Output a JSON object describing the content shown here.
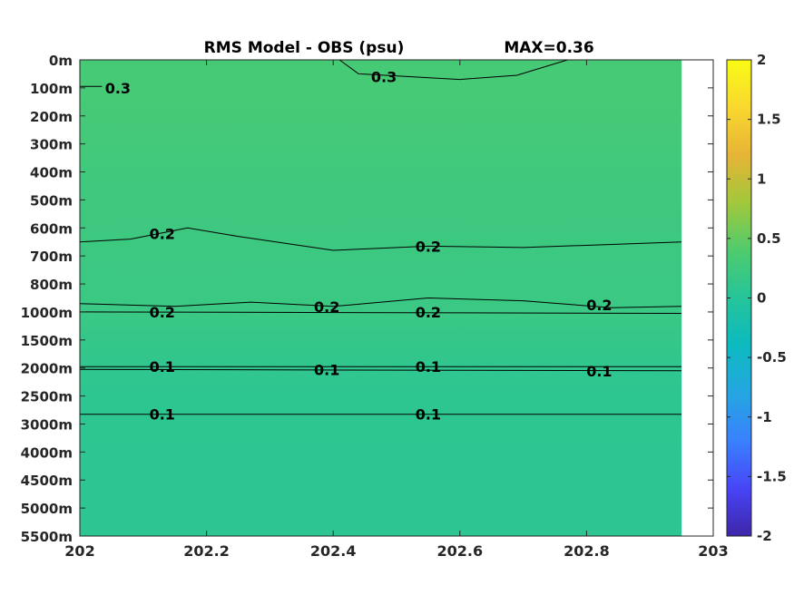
{
  "chart_data": {
    "type": "heatmap",
    "title": "RMS Model - OBS (psu)",
    "max_label": "MAX=0.36",
    "x_ticks": [
      "202",
      "202.2",
      "202.4",
      "202.6",
      "202.8",
      "203"
    ],
    "xlim": [
      202,
      203
    ],
    "data_x_end": 202.95,
    "depth_levels": [
      "0m",
      "100m",
      "200m",
      "300m",
      "400m",
      "500m",
      "600m",
      "700m",
      "800m",
      "1000m",
      "1500m",
      "2000m",
      "2500m",
      "3000m",
      "4000m",
      "4500m",
      "5000m",
      "5500m"
    ],
    "depth_rms": [
      0.32,
      0.32,
      0.31,
      0.29,
      0.26,
      0.25,
      0.24,
      0.22,
      0.21,
      0.2,
      0.15,
      0.1,
      0.09,
      0.09,
      0.08,
      0.08,
      0.08,
      0.08
    ],
    "colorbar": {
      "clim": [
        -2,
        2
      ],
      "ticks": [
        "2",
        "1.5",
        "1",
        "0.5",
        "0",
        "-0.5",
        "-1",
        "-1.5",
        "-2"
      ],
      "colormap": "parula",
      "stops": [
        "#3e26a8",
        "#4745f7",
        "#3981fd",
        "#25a6e1",
        "#0cbac0",
        "#25c49a",
        "#4fcb6d",
        "#a2c83b",
        "#e7b436",
        "#f9d82f",
        "#f9fb15"
      ]
    },
    "contours": [
      {
        "level": 0.3,
        "label": "0.3",
        "points": [
          [
            202,
            0.95
          ],
          [
            202.035,
            0.95
          ]
        ]
      },
      {
        "level": 0.3,
        "label": "0.3",
        "points": [
          [
            202.41,
            0
          ],
          [
            202.44,
            0.5
          ],
          [
            202.6,
            0.7
          ],
          [
            202.69,
            0.55
          ],
          [
            202.77,
            0
          ]
        ]
      },
      {
        "level": 0.2,
        "label": "0.2",
        "points": [
          [
            202,
            6.5
          ],
          [
            202.08,
            6.4
          ],
          [
            202.17,
            6.0
          ],
          [
            202.25,
            6.3
          ],
          [
            202.4,
            6.8
          ],
          [
            202.55,
            6.65
          ],
          [
            202.7,
            6.7
          ],
          [
            202.95,
            6.5
          ]
        ]
      },
      {
        "level": 0.2,
        "label": "0.2",
        "points": [
          [
            202,
            8.7
          ],
          [
            202.15,
            8.8
          ],
          [
            202.27,
            8.65
          ],
          [
            202.4,
            8.8
          ],
          [
            202.55,
            8.5
          ],
          [
            202.7,
            8.6
          ],
          [
            202.84,
            8.85
          ],
          [
            202.95,
            8.8
          ]
        ]
      },
      {
        "level": 0.2,
        "label": "0.2",
        "points": [
          [
            202,
            9.0
          ],
          [
            202.95,
            9.05
          ]
        ]
      },
      {
        "level": 0.1,
        "label": "0.1",
        "points": [
          [
            202,
            10.95
          ],
          [
            202.95,
            10.95
          ]
        ]
      },
      {
        "level": 0.1,
        "label": "0.1",
        "points": [
          [
            202,
            11.05
          ],
          [
            202.95,
            11.1
          ]
        ]
      },
      {
        "level": 0.1,
        "label": "0.1",
        "points": [
          [
            202,
            12.65
          ],
          [
            202.95,
            12.65
          ]
        ]
      }
    ],
    "contour_labels": [
      {
        "text": "0.3",
        "x": 202.06,
        "depth_index": 1.0
      },
      {
        "text": "0.3",
        "x": 202.48,
        "depth_index": 0.6
      },
      {
        "text": "0.2",
        "x": 202.13,
        "depth_index": 6.2
      },
      {
        "text": "0.2",
        "x": 202.55,
        "depth_index": 6.65
      },
      {
        "text": "0.2",
        "x": 202.13,
        "depth_index": 9.0
      },
      {
        "text": "0.2",
        "x": 202.39,
        "depth_index": 8.8
      },
      {
        "text": "0.2",
        "x": 202.55,
        "depth_index": 9.0
      },
      {
        "text": "0.2",
        "x": 202.82,
        "depth_index": 8.75
      },
      {
        "text": "0.1",
        "x": 202.13,
        "depth_index": 10.95
      },
      {
        "text": "0.1",
        "x": 202.39,
        "depth_index": 11.05
      },
      {
        "text": "0.1",
        "x": 202.55,
        "depth_index": 10.95
      },
      {
        "text": "0.1",
        "x": 202.82,
        "depth_index": 11.1
      },
      {
        "text": "0.1",
        "x": 202.13,
        "depth_index": 12.65
      },
      {
        "text": "0.1",
        "x": 202.55,
        "depth_index": 12.65
      }
    ]
  }
}
